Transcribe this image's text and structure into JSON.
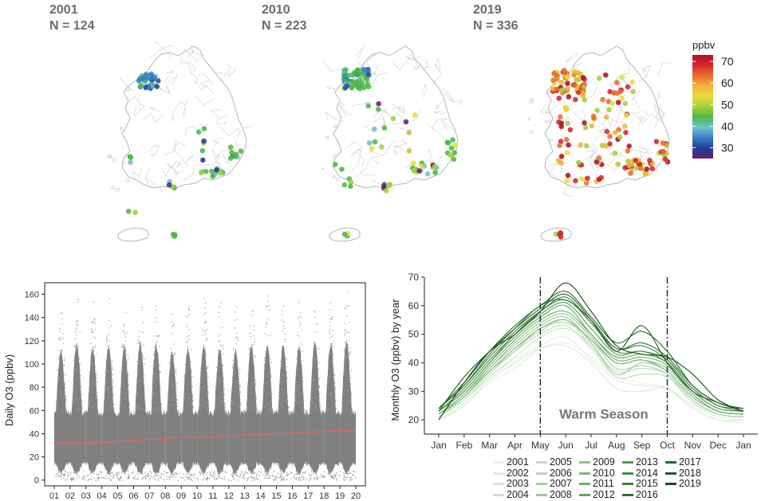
{
  "maps": [
    {
      "year": "2001",
      "count_label": "N = 124"
    },
    {
      "year": "2010",
      "count_label": "N = 223"
    },
    {
      "year": "2019",
      "count_label": "N = 336"
    }
  ],
  "color_legend": {
    "title": "ppbv",
    "ticks": [
      70,
      60,
      50,
      40,
      30
    ],
    "range": [
      25,
      73
    ],
    "colors": [
      "#6a1b7a",
      "#1f3f8f",
      "#3b7dc9",
      "#6cc3c9",
      "#4db848",
      "#a6cf3a",
      "#e6df3a",
      "#f0b43a",
      "#e8702e",
      "#d8262c",
      "#b0102a"
    ]
  },
  "chart_data": [
    {
      "type": "scatter",
      "title": "",
      "xlabel": "",
      "ylabel": "Daily O3 (ppbv)",
      "categories": [
        "01",
        "02",
        "03",
        "04",
        "05",
        "06",
        "07",
        "08",
        "09",
        "10",
        "11",
        "12",
        "13",
        "14",
        "15",
        "16",
        "17",
        "18",
        "19",
        "20"
      ],
      "ylim": [
        -5,
        170
      ],
      "yticks": [
        0,
        20,
        40,
        60,
        80,
        100,
        120,
        140,
        160
      ],
      "point_color": "#808080",
      "trend_color": "#e06666",
      "trend": {
        "x": [
          2001,
          2003,
          2005,
          2007,
          2009,
          2011,
          2013,
          2015,
          2017,
          2019,
          2020
        ],
        "y": [
          32,
          32,
          33,
          35,
          37,
          37,
          39,
          40,
          41,
          43,
          42
        ]
      },
      "yearly_peak": [
        150,
        163,
        155,
        157,
        158,
        162,
        160,
        148,
        155,
        160,
        156,
        152,
        158,
        162,
        160,
        158,
        163,
        162,
        165
      ]
    },
    {
      "type": "line",
      "title": "",
      "xlabel": "",
      "ylabel": "Monthly O3 (ppbv) by year",
      "categories": [
        "Jan",
        "Feb",
        "Mar",
        "Apr",
        "May",
        "Jun",
        "Jul",
        "Aug",
        "Sep",
        "Oct",
        "Nov",
        "Dec",
        "Jan"
      ],
      "ylim": [
        15,
        70
      ],
      "yticks": [
        20,
        30,
        40,
        50,
        60,
        70
      ],
      "annotation": "Warm Season",
      "warm_season_bounds": [
        "May",
        "Oct"
      ],
      "series": [
        {
          "name": "2001",
          "color": "#e8f1e6",
          "values": [
            19,
            25,
            33,
            38,
            45,
            47,
            42,
            35,
            33,
            31,
            24,
            20,
            19
          ]
        },
        {
          "name": "2002",
          "color": "#e2eedf",
          "values": [
            20,
            26,
            35,
            41,
            46,
            49,
            41,
            34,
            32,
            31,
            25,
            21,
            20
          ]
        },
        {
          "name": "2003",
          "color": "#d9e9d5",
          "values": [
            20,
            25,
            34,
            40,
            45,
            46,
            40,
            31,
            30,
            31,
            24,
            20,
            20
          ]
        },
        {
          "name": "2004",
          "color": "#cfe4cb",
          "values": [
            21,
            27,
            35,
            42,
            49,
            52,
            46,
            35,
            36,
            35,
            27,
            22,
            21
          ]
        },
        {
          "name": "2005",
          "color": "#c4dec0",
          "values": [
            21,
            27,
            36,
            44,
            50,
            53,
            45,
            35,
            36,
            35,
            26,
            22,
            21
          ]
        },
        {
          "name": "2006",
          "color": "#b8d8b4",
          "values": [
            21,
            28,
            37,
            45,
            51,
            55,
            46,
            37,
            38,
            36,
            27,
            22,
            21
          ]
        },
        {
          "name": "2007",
          "color": "#abd1a7",
          "values": [
            21,
            28,
            37,
            44,
            52,
            54,
            48,
            38,
            39,
            36,
            27,
            22,
            21
          ]
        },
        {
          "name": "2008",
          "color": "#9eca9a",
          "values": [
            22,
            28,
            38,
            46,
            53,
            56,
            47,
            36,
            40,
            37,
            28,
            23,
            22
          ]
        },
        {
          "name": "2009",
          "color": "#8fc28b",
          "values": [
            22,
            29,
            38,
            47,
            54,
            57,
            49,
            40,
            41,
            38,
            29,
            23,
            22
          ]
        },
        {
          "name": "2010",
          "color": "#7fb97c",
          "values": [
            22,
            28,
            37,
            45,
            52,
            55,
            48,
            40,
            41,
            37,
            28,
            23,
            22
          ]
        },
        {
          "name": "2011",
          "color": "#6fb06c",
          "values": [
            22,
            29,
            39,
            48,
            55,
            58,
            50,
            41,
            42,
            39,
            29,
            23,
            22
          ]
        },
        {
          "name": "2012",
          "color": "#5fa65d",
          "values": [
            23,
            30,
            40,
            49,
            56,
            60,
            50,
            42,
            43,
            40,
            30,
            24,
            23
          ]
        },
        {
          "name": "2013",
          "color": "#509b4f",
          "values": [
            23,
            30,
            40,
            50,
            57,
            61,
            52,
            43,
            44,
            40,
            30,
            24,
            23
          ]
        },
        {
          "name": "2014",
          "color": "#438f43",
          "values": [
            23,
            31,
            41,
            50,
            58,
            62,
            54,
            44,
            44,
            41,
            31,
            25,
            23
          ]
        },
        {
          "name": "2015",
          "color": "#378338",
          "values": [
            24,
            32,
            42,
            51,
            58,
            63,
            54,
            45,
            46,
            41,
            31,
            25,
            24
          ]
        },
        {
          "name": "2016",
          "color": "#2d762f",
          "values": [
            24,
            32,
            43,
            52,
            60,
            62,
            55,
            45,
            47,
            42,
            32,
            26,
            24
          ]
        },
        {
          "name": "2017",
          "color": "#246827",
          "values": [
            24,
            33,
            44,
            53,
            60,
            65,
            56,
            47,
            51,
            44,
            32,
            26,
            24
          ]
        },
        {
          "name": "2018",
          "color": "#1c5a20",
          "values": [
            23,
            35,
            44,
            52,
            59,
            64,
            55,
            44,
            53,
            40,
            30,
            26,
            23
          ]
        },
        {
          "name": "2019",
          "color": "#164a1a",
          "values": [
            20,
            33,
            44,
            50,
            58,
            68,
            58,
            46,
            43,
            42,
            36,
            27,
            23
          ]
        }
      ]
    }
  ]
}
